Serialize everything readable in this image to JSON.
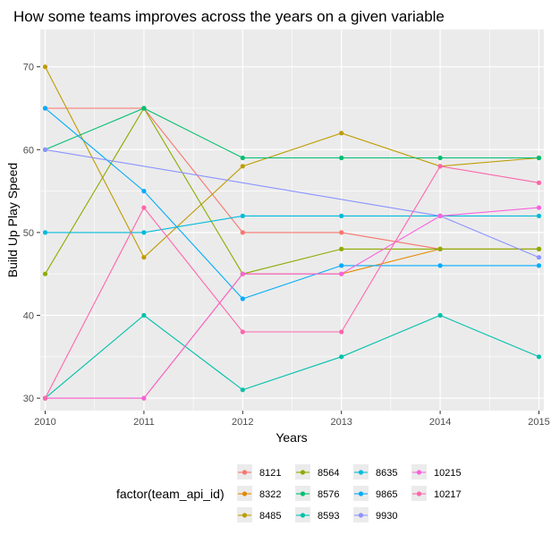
{
  "chart_data": {
    "type": "line",
    "title": "How some teams improves across the years on a given variable",
    "xlabel": "Years",
    "ylabel": "Build Up Play Speed",
    "x": [
      2010,
      2011,
      2012,
      2013,
      2014,
      2015
    ],
    "xlim": [
      2009.95,
      2015.05
    ],
    "ylim": [
      28.5,
      74.5
    ],
    "yticks": [
      30,
      40,
      50,
      60,
      70
    ],
    "grid": true,
    "legend": {
      "title": "factor(team_api_id)",
      "position": "bottom",
      "columns": [
        [
          "8121",
          "8322",
          "8485"
        ],
        [
          "8564",
          "8576",
          "8593"
        ],
        [
          "8635",
          "9865",
          "9930"
        ],
        [
          "10215",
          "10217"
        ]
      ]
    },
    "series": [
      {
        "name": "8121",
        "color": "#F8766D",
        "values": [
          65,
          65,
          50,
          50,
          48,
          48
        ]
      },
      {
        "name": "8322",
        "color": "#E18A00",
        "values": [
          30,
          30,
          45,
          45,
          48,
          48
        ]
      },
      {
        "name": "8485",
        "color": "#BE9C00",
        "values": [
          70,
          47,
          58,
          62,
          58,
          59
        ]
      },
      {
        "name": "8564",
        "color": "#8CAB00",
        "values": [
          45,
          65,
          45,
          48,
          48,
          48
        ]
      },
      {
        "name": "8576",
        "color": "#00BE70",
        "values": [
          60,
          65,
          59,
          59,
          59,
          59
        ]
      },
      {
        "name": "8593",
        "color": "#00C1AB",
        "values": [
          30,
          40,
          31,
          35,
          40,
          35
        ]
      },
      {
        "name": "8635",
        "color": "#00BBDA",
        "values": [
          50,
          50,
          52,
          52,
          52,
          52
        ]
      },
      {
        "name": "9865",
        "color": "#00ACFC",
        "values": [
          65,
          55,
          42,
          46,
          46,
          46
        ]
      },
      {
        "name": "9930",
        "color": "#8B93FF",
        "values": [
          60,
          null,
          null,
          null,
          52,
          47
        ]
      },
      {
        "name": "10215",
        "color": "#F962DD",
        "values": [
          30,
          30,
          45,
          45,
          52,
          53
        ]
      },
      {
        "name": "10217",
        "color": "#FF65AC",
        "values": [
          30,
          53,
          38,
          38,
          58,
          56
        ]
      }
    ]
  }
}
